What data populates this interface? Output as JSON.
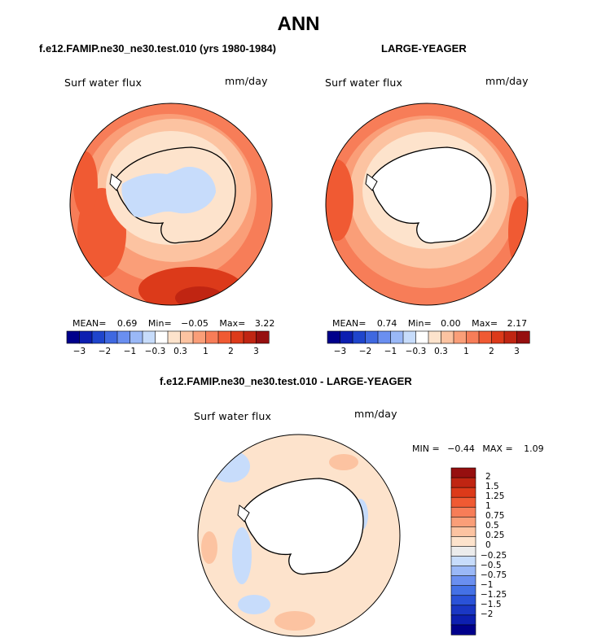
{
  "title": "ANN",
  "panels": [
    {
      "id": "test",
      "header": "f.e12.FAMIP.ne30_ne30.test.010 (yrs 1980-1984)",
      "variable": "Surf water flux",
      "units": "mm/day",
      "stats": {
        "mean_label": "MEAN=",
        "mean": "0.69",
        "min_label": "Min=",
        "min": "−0.05",
        "max_label": "Max=",
        "max": "3.22"
      }
    },
    {
      "id": "obs",
      "header": "LARGE-YEAGER",
      "variable": "Surf water flux",
      "units": "mm/day",
      "stats": {
        "mean_label": "MEAN=",
        "mean": "0.74",
        "min_label": "Min=",
        "min": "0.00",
        "max_label": "Max=",
        "max": "2.17"
      }
    },
    {
      "id": "diff",
      "header": "f.e12.FAMIP.ne30_ne30.test.010 - LARGE-YEAGER",
      "variable": "Surf water flux",
      "units": "mm/day",
      "stats": {
        "min_label": "MIN =",
        "min": "−0.44",
        "max_label": "MAX =",
        "max": "1.09"
      }
    }
  ],
  "colorbar_top": {
    "colors": [
      "#00008b",
      "#0d1fb0",
      "#1f45cc",
      "#3f68e0",
      "#6a8ff0",
      "#9ab8f7",
      "#c7dcfb",
      "#ffffff",
      "#fde3cc",
      "#fcc3a1",
      "#fa9e78",
      "#f77d58",
      "#f05a33",
      "#dc3a1a",
      "#c02512",
      "#960f0f"
    ],
    "tick_labels": [
      "−3",
      "−2",
      "−1",
      "−0.3",
      "0.3",
      "1",
      "2",
      "3"
    ]
  },
  "colorbar_diff": {
    "colors": [
      "#00008b",
      "#0d1fb0",
      "#1a37c4",
      "#2a52d8",
      "#4471e6",
      "#6a8ff0",
      "#9ab8f7",
      "#c7dcfb",
      "#ececec",
      "#fde3cc",
      "#fcc3a1",
      "#fa9e78",
      "#f77d58",
      "#f05a33",
      "#dc3a1a",
      "#c02512",
      "#960f0f"
    ],
    "labels": [
      "2",
      "1.5",
      "1.25",
      "1",
      "0.75",
      "0.5",
      "0.25",
      "0",
      "−0.25",
      "−0.5",
      "−0.75",
      "−1",
      "−1.25",
      "−1.5",
      "−2"
    ]
  },
  "fill_colors": {
    "land": "#ffffff",
    "ocean_dark": "#f05a33",
    "ocean_mid": "#fa9e78",
    "ocean_light": "#fcc3a1",
    "coast_pale": "#fde3cc",
    "ice_blue": "#c7dcfb"
  }
}
